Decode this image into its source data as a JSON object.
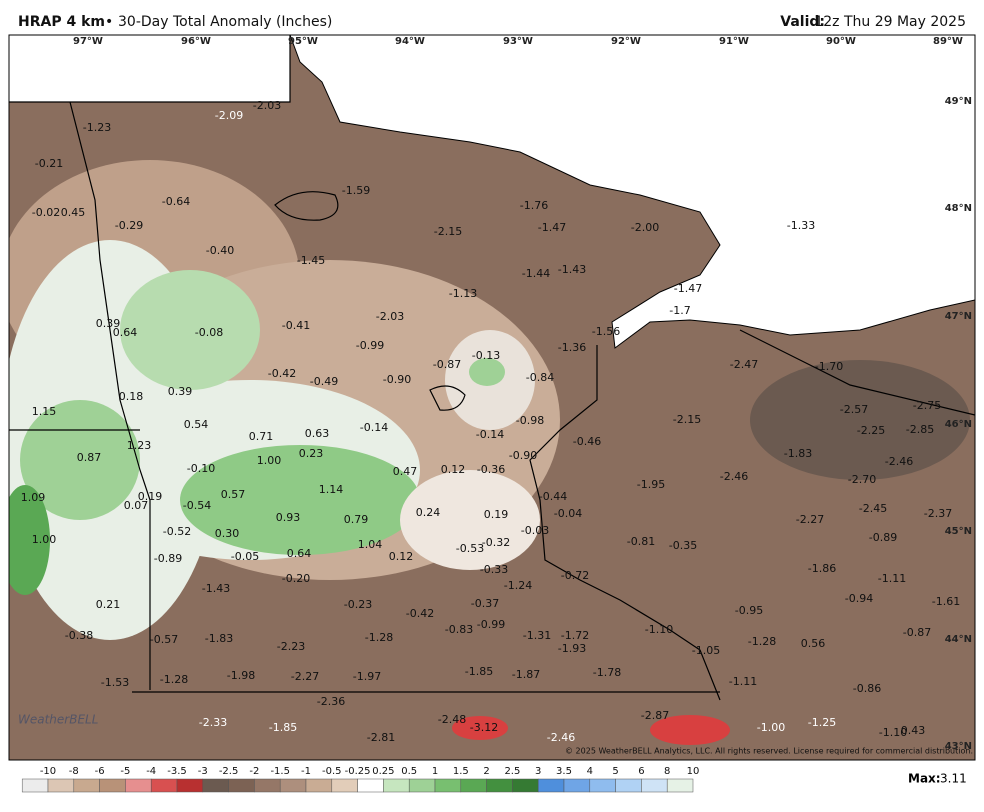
{
  "header": {
    "brand": "HRAP 4 km",
    "separator": "•",
    "title": "30-Day Total Anomaly (Inches)",
    "valid_label": "Valid:",
    "valid_time": "12z Thu 29 May 2025"
  },
  "longitudes": [
    "97°W",
    "96°W",
    "95°W",
    "94°W",
    "93°W",
    "92°W",
    "91°W",
    "90°W",
    "89°W"
  ],
  "latitudes": [
    "49°N",
    "48°N",
    "47°N",
    "46°N",
    "45°N",
    "44°N",
    "43°N"
  ],
  "map": {
    "labels": [
      "-2.03",
      "-2.09",
      "-1.23",
      "-0.21",
      "-0.02",
      "0.45",
      "-0.64",
      "-0.29",
      "-1.59",
      "-1.76",
      "-2.15",
      "-1.47",
      "-2.00",
      "-1.33",
      "-0.40",
      "-1.45",
      "-1.44",
      "-1.43",
      "-1.13",
      "-1.47",
      "0.39",
      "0.64",
      "-0.08",
      "-0.41",
      "-2.03",
      "-1.7",
      "-1.56",
      "-0.99",
      "-1.36",
      "-0.87",
      "-0.13",
      "-2.47",
      "-1.70",
      "-0.42",
      "-0.49",
      "-0.90",
      "-0.84",
      "0.18",
      "0.39",
      "1.15",
      "-2.57",
      "-2.75",
      "0.54",
      "-0.14",
      "-0.14",
      "-0.98",
      "-2.15",
      "-2.25",
      "-2.85",
      "0.71",
      "0.63",
      "-0.46",
      "1.23",
      "0.87",
      "1.00",
      "0.23",
      "-0.10",
      "0.47",
      "0.12",
      "-0.36",
      "-0.90",
      "-1.83",
      "-2.46",
      "-2.46",
      "-1.95",
      "-2.70",
      "1.09",
      "0.19",
      "0.07",
      "-0.54",
      "0.57",
      "1.14",
      "-0.44",
      "-0.04",
      "-2.45",
      "-2.37",
      "0.93",
      "0.79",
      "0.24",
      "0.19",
      "-2.27",
      "-0.52",
      "0.30",
      "-0.03",
      "1.00",
      "-0.32",
      "-0.53",
      "-0.81",
      "-0.35",
      "-0.89",
      "-0.89",
      "-0.05",
      "0.64",
      "1.04",
      "0.12",
      "-0.33",
      "-0.72",
      "-1.86",
      "-1.11",
      "-0.20",
      "-1.24",
      "-1.43",
      "-0.94",
      "0.21",
      "-0.23",
      "-0.37",
      "-0.42",
      "-0.95",
      "-1.61",
      "-0.83",
      "-0.99",
      "-1.31",
      "-1.72",
      "-1.28",
      "-1.10",
      "-0.38",
      "-0.57",
      "-1.83",
      "-2.23",
      "-1.93",
      "-1.28",
      "0.56",
      "-0.87",
      "-1.05",
      "-1.85",
      "-1.87",
      "-1.78",
      "-1.28",
      "-1.98",
      "-2.27",
      "-1.97",
      "-1.53",
      "-1.11",
      "-0.86",
      "-2.36",
      "-2.87",
      "-2.48",
      "-3.12",
      "-2.33",
      "-1.85",
      "-2.81",
      "-2.46",
      "-1.00",
      "-1.25",
      "-1.10",
      "0.43"
    ]
  },
  "logo": "WeatherBELL",
  "copyright": "© 2025 WeatherBELL Analytics, LLC. All rights reserved. License required for commercial distribution.",
  "legend": {
    "ticks": [
      "-10",
      "-8",
      "-6",
      "-5",
      "-4",
      "-3.5",
      "-3",
      "-2.5",
      "-2",
      "-1.5",
      "-1",
      "-0.5",
      "-0.25",
      "0.25",
      "0.5",
      "1",
      "1.5",
      "2",
      "2.5",
      "3",
      "3.5",
      "4",
      "5",
      "6",
      "8",
      "10"
    ],
    "colors": [
      "#ececec",
      "#dcc6b4",
      "#c8a98f",
      "#b89278",
      "#e68f8f",
      "#d85050",
      "#b83030",
      "#6b5a50",
      "#7c6254",
      "#957767",
      "#ad8f7d",
      "#c9ac94",
      "#e2cdb9",
      "#ffffff",
      "#c6e6bf",
      "#9ed196",
      "#78bf70",
      "#5aa854",
      "#43903f",
      "#357a33",
      "#4f8fdc",
      "#6fa5e6",
      "#8fbcee",
      "#b0d2f4",
      "#cfe3f6",
      "#e6f2e6"
    ]
  },
  "max_label": "Max:",
  "max_value": "3.11"
}
